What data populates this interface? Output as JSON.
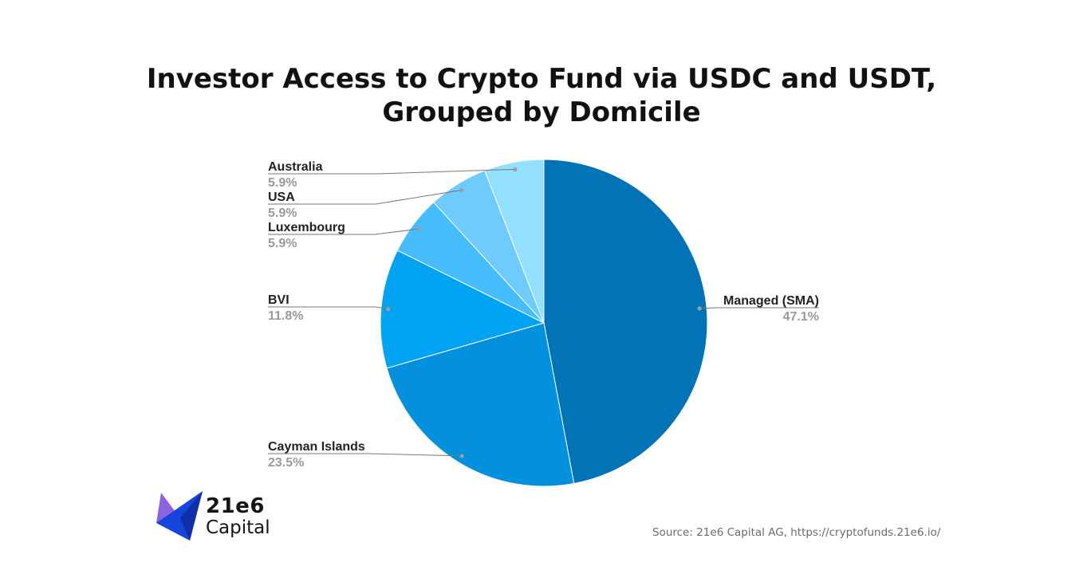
{
  "title_lines": [
    "Investor Access to Crypto Fund via USDC and USDT,",
    "Grouped by Domicile"
  ],
  "source": "Source: 21e6 Capital AG, https://cryptofunds.21e6.io/",
  "logo": {
    "line1": "21e6",
    "line2": "Capital"
  },
  "chart_data": {
    "type": "pie",
    "title": "Investor Access to Crypto Fund via USDC and USDT, Grouped by Domicile",
    "start": "12 o'clock, clockwise",
    "slices": [
      {
        "label": "Managed (SMA)",
        "value": 47.1,
        "display": "47.1%",
        "color": "#0274b6"
      },
      {
        "label": "Cayman Islands",
        "value": 23.5,
        "display": "23.5%",
        "color": "#0391dd"
      },
      {
        "label": "BVI",
        "value": 11.8,
        "display": "11.8%",
        "color": "#03a3f4"
      },
      {
        "label": "Luxembourg",
        "value": 5.9,
        "display": "5.9%",
        "color": "#45bdfc"
      },
      {
        "label": "USA",
        "value": 5.9,
        "display": "5.9%",
        "color": "#6fcbfc"
      },
      {
        "label": "Australia",
        "value": 5.9,
        "display": "5.9%",
        "color": "#93dffe"
      }
    ],
    "label_color": "#222222",
    "percent_color": "#9a9a9a",
    "leader_color": "#777777"
  }
}
